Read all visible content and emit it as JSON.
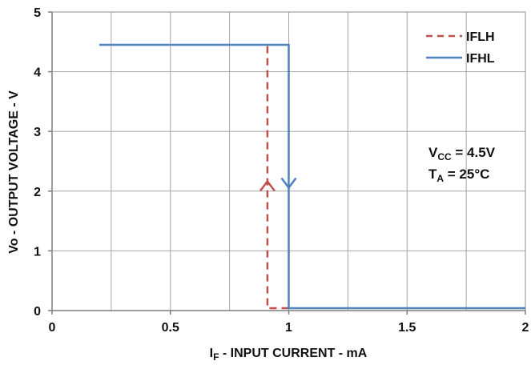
{
  "chart_data": {
    "type": "line",
    "title": "",
    "xlabel": {
      "main": "I",
      "sub": "F",
      "rest": " - INPUT CURRENT - mA"
    },
    "ylabel": "Vo - OUTPUT VOLTAGE - V",
    "xlim": [
      0,
      2
    ],
    "ylim": [
      0,
      5
    ],
    "x_ticks": [
      "0",
      "0.5",
      "1",
      "1.5",
      "2"
    ],
    "y_ticks": [
      "0",
      "1",
      "2",
      "3",
      "4",
      "5"
    ],
    "x_tick_values": [
      0,
      0.5,
      1,
      1.5,
      2
    ],
    "y_tick_values": [
      0,
      1,
      2,
      3,
      4,
      5
    ],
    "x_grid_step": 0.25,
    "grid": true,
    "legend_position": "top-right",
    "series": [
      {
        "name": "IFLH",
        "color": "#c0504d",
        "dashed": true,
        "direction": "up",
        "x": [
          1.0,
          0.91,
          0.91
        ],
        "y": [
          0.04,
          0.04,
          4.45
        ]
      },
      {
        "name": "IFHL",
        "color": "#4f81bd",
        "dashed": false,
        "direction": "down",
        "x": [
          0.2,
          1.0,
          1.0,
          2.0
        ],
        "y": [
          4.45,
          4.45,
          0.04,
          0.04
        ]
      }
    ],
    "annotations": [
      {
        "main": "V",
        "sub": "CC",
        "rest": " = 4.5V"
      },
      {
        "main": "T",
        "sub": "A",
        "rest": " = 25°C"
      }
    ]
  }
}
